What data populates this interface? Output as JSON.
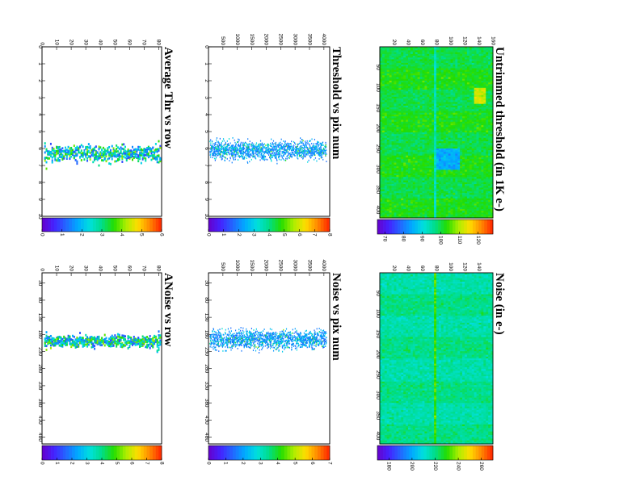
{
  "chart_data": [
    {
      "id": "thr_map",
      "type": "heatmap",
      "title": "Untrimmed threshold (in 1K e-)",
      "x": {
        "range": [
          0,
          160
        ],
        "ticks": [
          20,
          40,
          60,
          80,
          100,
          120,
          140,
          160
        ]
      },
      "y": {
        "range": [
          0,
          420
        ],
        "ticks": [
          50,
          100,
          150,
          200,
          250,
          300,
          350,
          400
        ]
      },
      "z": {
        "range": [
          66,
          128
        ],
        "ticks": [
          70,
          80,
          90,
          100,
          110,
          120
        ]
      },
      "base_value": 101,
      "features": [
        {
          "kind": "low_band",
          "x_at": 79,
          "value": 93
        },
        {
          "kind": "low_block",
          "x_range": [
            80,
            113
          ],
          "y_range": [
            250,
            302
          ],
          "value": 85
        },
        {
          "kind": "high_spot",
          "x_range": [
            132,
            150
          ],
          "y_range": [
            100,
            140
          ],
          "value": 112
        }
      ]
    },
    {
      "id": "noise_map",
      "type": "heatmap",
      "title": "Noise (in e-)",
      "x": {
        "range": [
          0,
          160
        ],
        "ticks": [
          20,
          40,
          60,
          80,
          100,
          120,
          140
        ]
      },
      "y": {
        "range": [
          0,
          420
        ],
        "ticks": [
          50,
          100,
          150,
          200,
          250,
          300,
          350,
          400
        ]
      },
      "z": {
        "range": [
          170,
          270
        ],
        "ticks": [
          180,
          200,
          220,
          240,
          260
        ]
      },
      "base_value": 218,
      "features": [
        {
          "kind": "low_band",
          "x_at": 79,
          "value": 232
        }
      ]
    },
    {
      "id": "thr_pix",
      "type": "scatter",
      "title": "Threshold vs pix num",
      "x": {
        "range": [
          0,
          4200
        ],
        "ticks": [
          500,
          1000,
          1500,
          2000,
          2500,
          3000,
          3500,
          4000
        ]
      },
      "y": {
        "range": [
          0,
          10
        ],
        "ticks": [
          0,
          1,
          2,
          3,
          4,
          5,
          6,
          7,
          8,
          9,
          10
        ]
      },
      "z": {
        "range": [
          0,
          8
        ],
        "ticks": [
          0,
          1,
          2,
          3,
          4,
          5,
          6,
          7,
          8
        ]
      },
      "band_center": 6.1,
      "band_halfwidth": 0.7
    },
    {
      "id": "noise_pix",
      "type": "scatter",
      "title": "Noise vs pix num",
      "x": {
        "range": [
          0,
          4200
        ],
        "ticks": [
          500,
          1000,
          1500,
          2000,
          2500,
          3000,
          3500,
          4000
        ]
      },
      "y": {
        "range": [
          0,
          500
        ],
        "ticks": [
          30,
          80,
          130,
          180,
          230,
          280,
          330,
          380,
          430,
          480
        ]
      },
      "z": {
        "range": [
          0,
          7
        ],
        "ticks": [
          0,
          1,
          2,
          3,
          4,
          5,
          6,
          7
        ]
      },
      "band_center": 195,
      "band_halfwidth": 35
    },
    {
      "id": "thr_row",
      "type": "scatter",
      "title": "Average Thr vs row",
      "x": {
        "range": [
          0,
          82
        ],
        "ticks": [
          0,
          10,
          20,
          30,
          40,
          50,
          60,
          70,
          80
        ]
      },
      "y": {
        "range": [
          0,
          10
        ],
        "ticks": [
          0,
          1,
          2,
          3,
          4,
          5,
          6,
          7,
          8,
          9,
          10
        ]
      },
      "z": {
        "range": [
          0,
          6
        ],
        "ticks": [
          0,
          1,
          2,
          3,
          4,
          5,
          6
        ]
      },
      "band_center": 6.3,
      "band_halfwidth": 0.45
    },
    {
      "id": "noise_row",
      "type": "scatter",
      "title": "ANoise vs row",
      "x": {
        "range": [
          0,
          82
        ],
        "ticks": [
          0,
          10,
          20,
          30,
          40,
          50,
          60,
          70,
          80
        ]
      },
      "y": {
        "range": [
          0,
          500
        ],
        "ticks": [
          30,
          80,
          130,
          180,
          230,
          280,
          330,
          380,
          430,
          480
        ]
      },
      "z": {
        "range": [
          0,
          8
        ],
        "ticks": [
          0,
          1,
          2,
          3,
          4,
          5,
          6,
          7,
          8
        ]
      },
      "band_center": 200,
      "band_halfwidth": 16
    }
  ]
}
